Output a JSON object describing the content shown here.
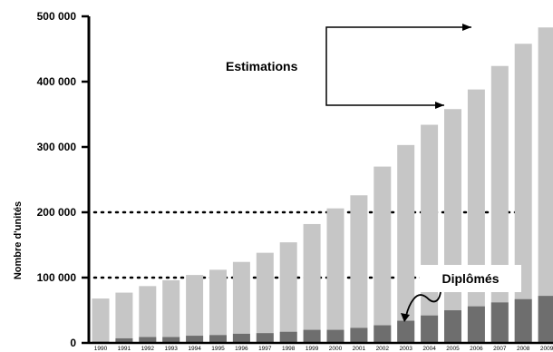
{
  "chart_data": {
    "type": "bar",
    "ylabel": "Nombre d'unités",
    "ylim": [
      0,
      500000
    ],
    "y_ticks": [
      "0",
      "100 000",
      "200 000",
      "300 000",
      "400 000",
      "500 000"
    ],
    "categories": [
      "1990",
      "1991",
      "1992",
      "1993",
      "1994",
      "1995",
      "1996",
      "1997",
      "1998",
      "1999",
      "2000",
      "2001",
      "2002",
      "2003",
      "2004",
      "2005",
      "2006",
      "2007",
      "2008",
      "2009"
    ],
    "series": [
      {
        "name": "",
        "color": "#c6c6c6",
        "values": [
          68000,
          77000,
          87000,
          96000,
          104000,
          112000,
          124000,
          138000,
          154000,
          182000,
          206000,
          226000,
          270000,
          303000,
          334000,
          358000,
          388000,
          424000,
          458000,
          483000
        ]
      },
      {
        "name": "Diplômés",
        "color": "#6e6e6e",
        "values": [
          2000,
          7000,
          9000,
          9000,
          11000,
          12000,
          14000,
          15000,
          17000,
          20000,
          20000,
          23000,
          27000,
          34000,
          42000,
          50000,
          56000,
          62000,
          67000,
          72000
        ]
      }
    ],
    "reference_lines": [
      100000,
      200000
    ],
    "annotations": {
      "estimations": "Estimations",
      "diplomes": "Diplômés"
    },
    "grid": false,
    "legend": "none"
  }
}
